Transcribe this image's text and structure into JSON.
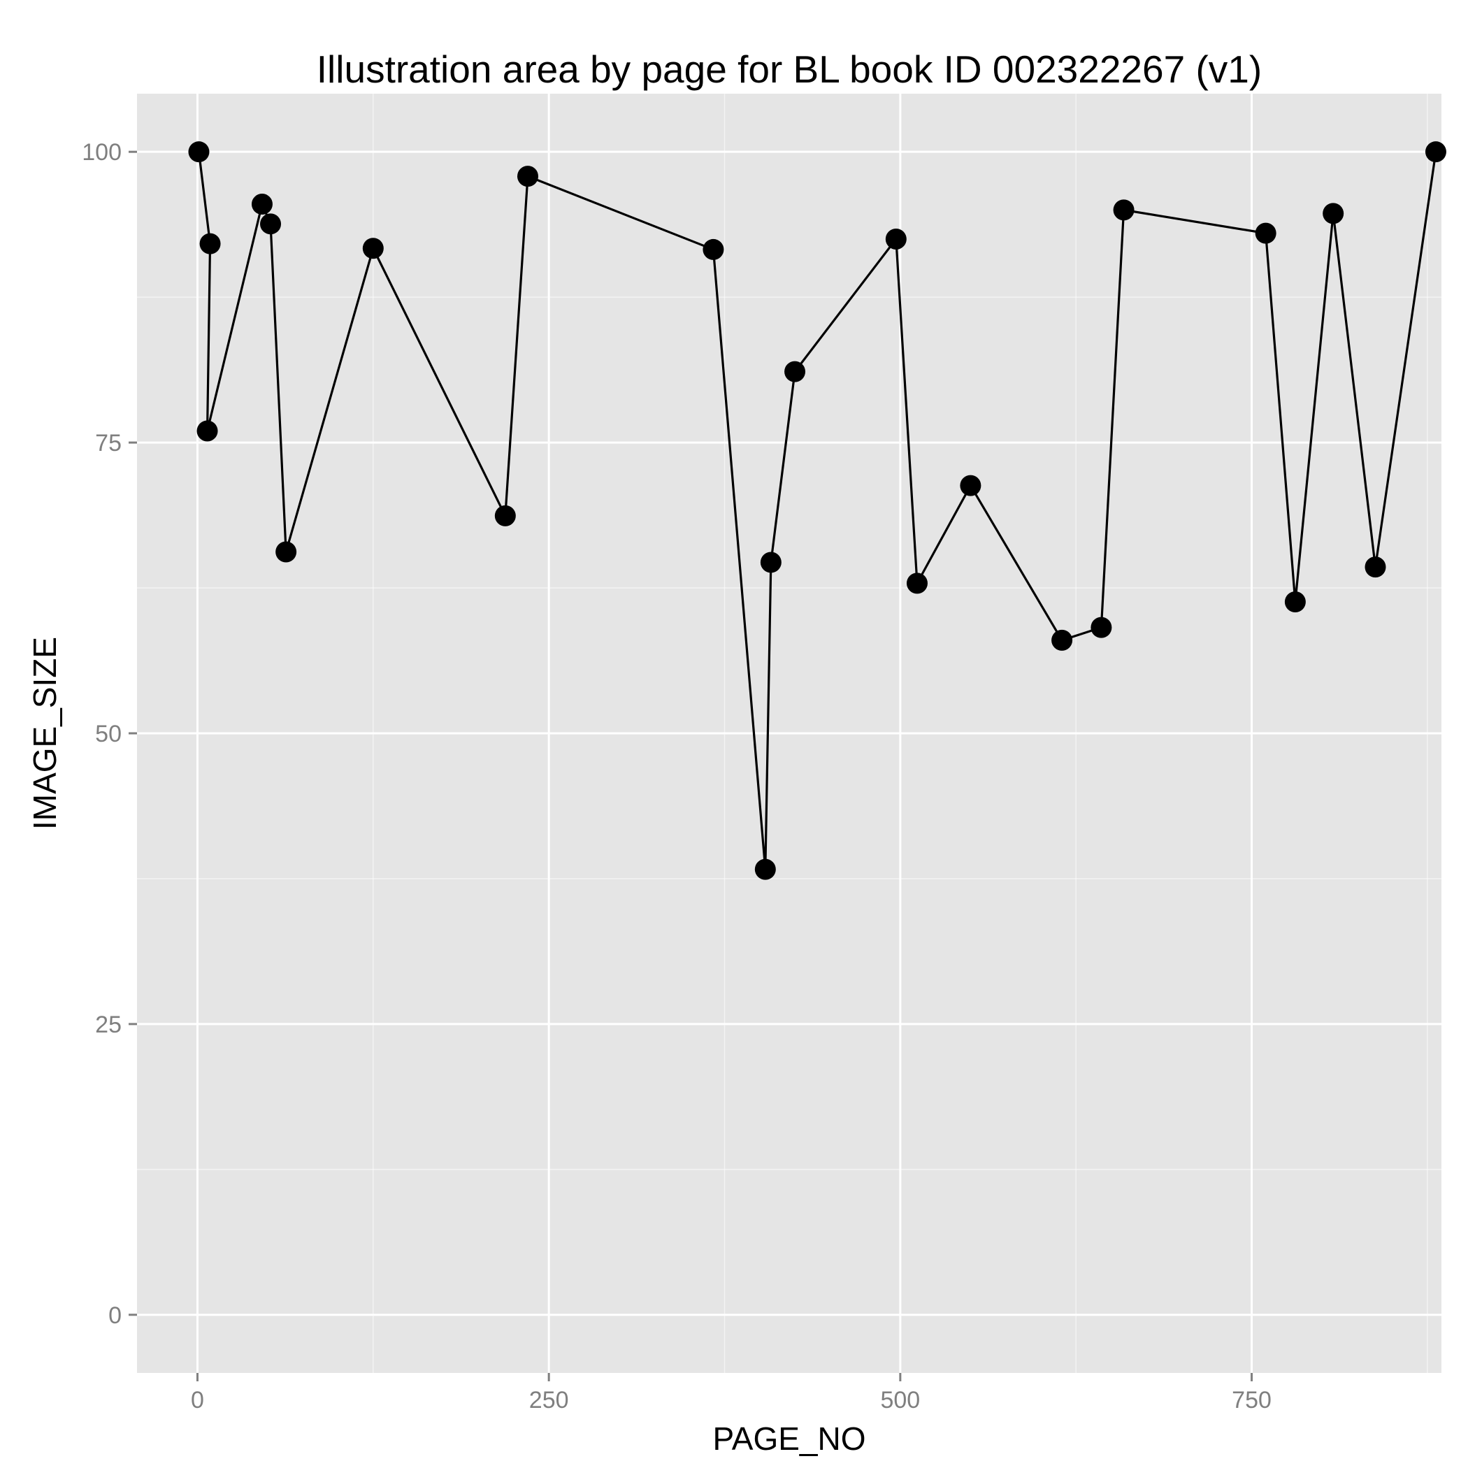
{
  "chart_data": {
    "type": "line",
    "title": "Illustration area by page for BL book ID 002322267 (v1)",
    "xlabel": "PAGE_NO",
    "ylabel": "IMAGE_SIZE",
    "xlim": [
      -43,
      885
    ],
    "ylim": [
      -5,
      105
    ],
    "xticks": [
      0,
      250,
      500,
      750
    ],
    "yticks": [
      0,
      25,
      50,
      75,
      100
    ],
    "xtick_labels": [
      "0",
      "250",
      "500",
      "750"
    ],
    "ytick_labels": [
      "0",
      "25",
      "50",
      "75",
      "100"
    ],
    "grid": true,
    "legend": "none",
    "colors": {
      "panel": "#e5e5e5",
      "grid": "#ffffff",
      "line": "#000000",
      "point": "#000000",
      "tick_text": "#7f7f7f"
    },
    "series": [
      {
        "x": [
          1,
          9,
          7,
          46,
          52,
          63,
          125,
          219,
          235,
          367,
          404,
          408,
          425,
          497,
          512,
          550,
          615,
          643,
          659,
          760,
          781,
          808,
          838,
          881
        ],
        "y": [
          100,
          92.1,
          76,
          95.5,
          93.8,
          65.6,
          91.7,
          68.7,
          97.9,
          91.6,
          38.3,
          64.7,
          81.1,
          92.5,
          62.9,
          71.3,
          58,
          59.1,
          95,
          93,
          61.3,
          94.7,
          64.3,
          100
        ]
      }
    ]
  }
}
